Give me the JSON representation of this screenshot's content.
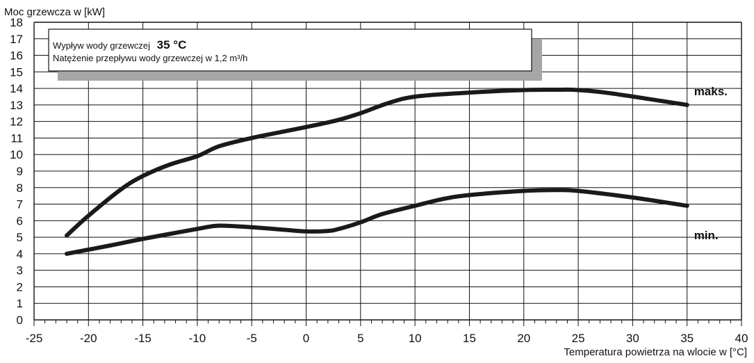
{
  "chart_data": {
    "type": "line",
    "title": "",
    "ylabel": "Moc grzewcza w [kW]",
    "xlabel": "Temperatura powietrza na wlocie w [°C]",
    "xlim": [
      -25,
      40
    ],
    "ylim": [
      0,
      18
    ],
    "x_ticks": [
      -25,
      -20,
      -15,
      -10,
      -5,
      0,
      5,
      10,
      15,
      20,
      25,
      30,
      35,
      40
    ],
    "y_ticks": [
      0,
      1,
      2,
      3,
      4,
      5,
      6,
      7,
      8,
      9,
      10,
      11,
      12,
      13,
      14,
      15,
      16,
      17,
      18
    ],
    "grid": true,
    "annotation": {
      "line1_prefix": "Wypływ wody grzewczej",
      "line1_value": "35 °C",
      "line2": "Natężenie przepływu wody grzewczej w 1,2 m³/h"
    },
    "series": [
      {
        "name": "maks.",
        "points": [
          [
            -22,
            5.1
          ],
          [
            -20,
            6.3
          ],
          [
            -17,
            7.9
          ],
          [
            -15,
            8.7
          ],
          [
            -12.5,
            9.4
          ],
          [
            -10,
            9.9
          ],
          [
            -8,
            10.5
          ],
          [
            -5,
            11.0
          ],
          [
            -2,
            11.4
          ],
          [
            1,
            11.8
          ],
          [
            3,
            12.1
          ],
          [
            5,
            12.5
          ],
          [
            7.5,
            13.1
          ],
          [
            10,
            13.5
          ],
          [
            15,
            13.75
          ],
          [
            20,
            13.9
          ],
          [
            23,
            13.92
          ],
          [
            25,
            13.9
          ],
          [
            28,
            13.7
          ],
          [
            35,
            13.0
          ]
        ]
      },
      {
        "name": "min.",
        "points": [
          [
            -22,
            4.0
          ],
          [
            -18,
            4.5
          ],
          [
            -15,
            4.9
          ],
          [
            -10,
            5.5
          ],
          [
            -8,
            5.7
          ],
          [
            -5,
            5.6
          ],
          [
            -2,
            5.45
          ],
          [
            0,
            5.35
          ],
          [
            2,
            5.38
          ],
          [
            3,
            5.5
          ],
          [
            5,
            5.9
          ],
          [
            7,
            6.4
          ],
          [
            10,
            6.9
          ],
          [
            12.5,
            7.3
          ],
          [
            15,
            7.55
          ],
          [
            20,
            7.8
          ],
          [
            23,
            7.85
          ],
          [
            25,
            7.8
          ],
          [
            30,
            7.4
          ],
          [
            35,
            6.9
          ]
        ]
      }
    ]
  }
}
